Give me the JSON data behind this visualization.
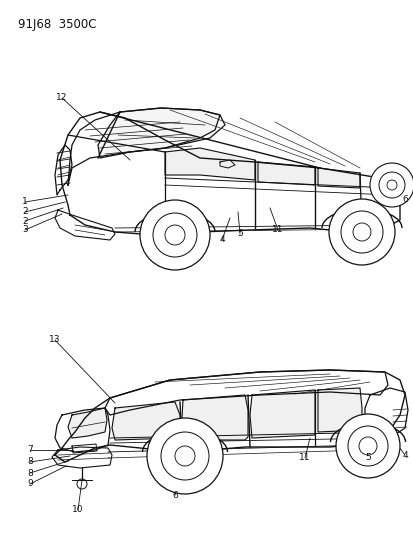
{
  "title": "91J68  3500C",
  "bg": "#ffffff",
  "lc": "#111111",
  "figsize": [
    4.14,
    5.33
  ],
  "dpi": 100
}
